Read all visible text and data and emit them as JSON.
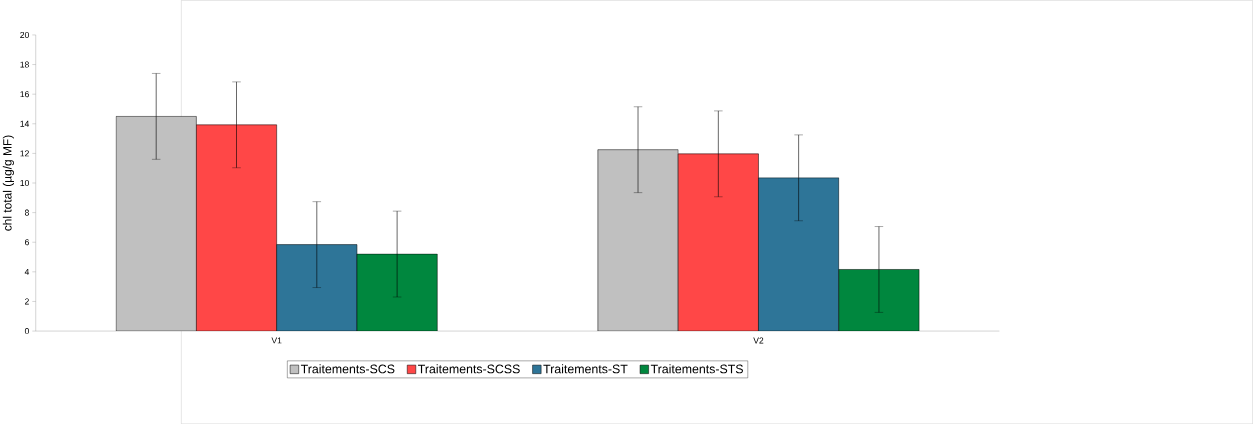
{
  "chart_data": {
    "type": "bar",
    "ylabel": "chl total (µg/g MF)",
    "categories": [
      "V1",
      "V2"
    ],
    "series": [
      {
        "name": "Traitements-SCS",
        "color": "#c0c0c0",
        "values": [
          14.5,
          12.25
        ],
        "errors": [
          2.9,
          2.9
        ]
      },
      {
        "name": "Traitements-SCSS",
        "color": "#ff4747",
        "values": [
          13.93,
          11.97
        ],
        "errors": [
          2.9,
          2.9
        ]
      },
      {
        "name": "Traitements-ST",
        "color": "#2e7598",
        "values": [
          5.84,
          10.35
        ],
        "errors": [
          2.9,
          2.9
        ]
      },
      {
        "name": "Traitements-STS",
        "color": "#00873e",
        "values": [
          5.2,
          4.16
        ],
        "errors": [
          2.9,
          2.9
        ]
      }
    ],
    "ylim": [
      0,
      20
    ],
    "yticks": [
      0,
      2,
      4,
      6,
      8,
      10,
      12,
      14,
      16,
      18,
      20
    ],
    "legend": "bottom"
  }
}
